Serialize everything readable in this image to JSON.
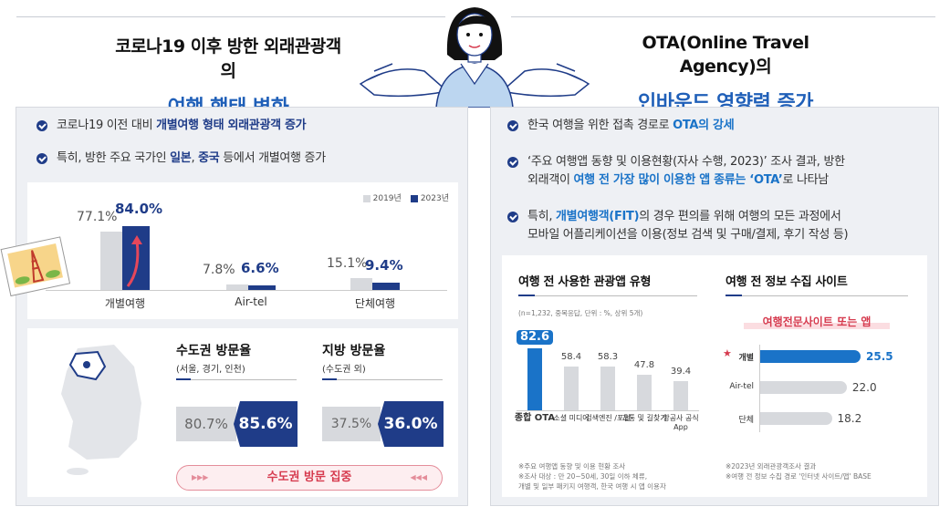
{
  "header": {
    "left_line1": "코로나19 이후 방한 외래관광객의",
    "left_line2": "여행 행태 변화",
    "right_line1": "OTA(Online Travel Agency)의",
    "right_line2": "인바운드 영향력 증가"
  },
  "left": {
    "bullet1_pre": "코로나19 이전 대비 ",
    "bullet1_hl": "개별여행 형태 외래관광객 증가",
    "bullet2_pre": "특히, 방한 주요 국가인 ",
    "bullet2_hl1": "일본",
    "bullet2_sep": ", ",
    "bullet2_hl2": "중국",
    "bullet2_post": " 등에서 개별여행 증가",
    "legend_2019": "2019년",
    "legend_2023": "2023년",
    "bars": [
      {
        "category": "개별여행",
        "v2019": 77.1,
        "v2023": 84.0,
        "l2019": "77.1%",
        "l2023": "84.0%"
      },
      {
        "category": "Air-tel",
        "v2019": 7.8,
        "v2023": 6.6,
        "l2019": "7.8%",
        "l2023": "6.6%"
      },
      {
        "category": "단체여행",
        "v2019": 15.1,
        "v2023": 9.4,
        "l2019": "15.1%",
        "l2023": "9.4%"
      }
    ],
    "capital_title": "수도권 방문율",
    "capital_sub": "(서울, 경기, 인천)",
    "capital_old": "80.7%",
    "capital_new": "85.6%",
    "local_title": "지방 방문율",
    "local_sub": "(수도권 외)",
    "local_old": "37.5%",
    "local_new": "36.0%",
    "pill": "수도권 방문 집중",
    "pill_arrows_left": "▶▶▶",
    "pill_arrows_right": "◀◀◀"
  },
  "right": {
    "bullet1_pre": "한국 여행을 위한 접촉 경로로 ",
    "bullet1_hl": "OTA의 강세",
    "bullet2_l1": "‘주요 여행앱 동향 및 이용현황(자사 수행, 2023)’ 조사 결과, 방한",
    "bullet2_l2_pre": "외래객이 ",
    "bullet2_l2_hl": "여행 전 가장 많이 이용한 앱 종류는 ‘OTA’",
    "bullet2_l2_post": "로 나타남",
    "bullet3_l1_pre": "특히, ",
    "bullet3_l1_hl": "개별여행객(FIT)",
    "bullet3_l1_post": "의 경우 편의를 위해 여행의 모든 과정에서",
    "bullet3_l2": "모바일 어플리케이션을 이용(정보 검색 및 구매/결제, 후기 작성 등)",
    "app_title": "여행 전 사용한 관광앱 유형",
    "app_note": "(n=1,232, 중복응답, 단위 : %, 상위 5개)",
    "app_bars": [
      {
        "category": "종합 OTA",
        "value": 82.6,
        "label": "82.6"
      },
      {
        "category": "소셜 미디어",
        "value": 58.4,
        "label": "58.4"
      },
      {
        "category": "검색엔진 /포털",
        "value": 58.3,
        "label": "58.3"
      },
      {
        "category": "교통 및 길찾기",
        "value": 47.8,
        "label": "47.8"
      },
      {
        "category": "항공사 공식 App",
        "value": 39.4,
        "label": "39.4"
      }
    ],
    "app_foot1": "※주요 여행앱 동향 및 이용 현황 조사",
    "app_foot2": "※조사 대상 : 만 20~50세, 30일 이하 체류,",
    "app_foot3": "개별 및 일부 패키지 여행객, 한국 여행 시 앱 이용자",
    "info_title": "여행 전 정보 수집 사이트",
    "info_banner": "여행전문사이트 또는 앱",
    "info_bars": [
      {
        "category": "개별",
        "value": 25.5,
        "label": "25.5"
      },
      {
        "category": "Air-tel",
        "value": 22.0,
        "label": "22.0"
      },
      {
        "category": "단체",
        "value": 18.2,
        "label": "18.2"
      }
    ],
    "info_foot1": "※2023년 외래관광객조사 결과",
    "info_foot2": "※여행 전 정보 수집 경로 '인터넷 사이트/앱' BASE"
  },
  "colors": {
    "navy": "#1f3c88",
    "blue": "#1a73c8",
    "gray": "#d7d9dd",
    "red": "#d63a4e"
  }
}
